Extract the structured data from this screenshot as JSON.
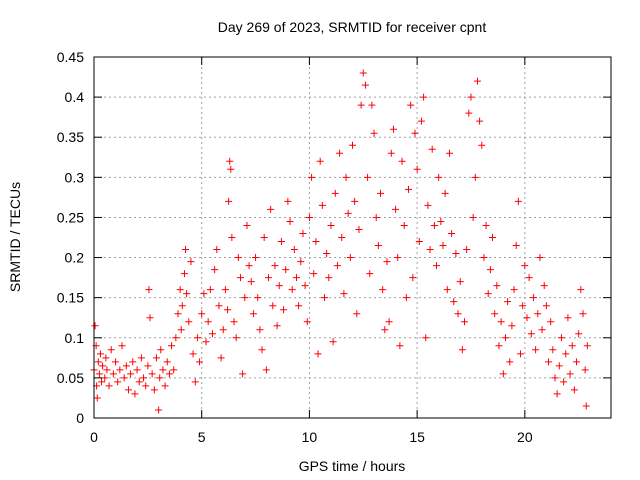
{
  "chart_data": {
    "type": "scatter",
    "title": "Day 269 of 2023, SRMTID for receiver cpnt",
    "xlabel": "GPS time / hours",
    "ylabel": "SRMTID / TECUs",
    "xlim": [
      0,
      24
    ],
    "ylim": [
      0,
      0.45
    ],
    "x_ticks": [
      0,
      5,
      10,
      15,
      20
    ],
    "x_tick_labels": [
      "0",
      "5",
      "10",
      "15",
      "20"
    ],
    "y_ticks": [
      0,
      0.05,
      0.1,
      0.15,
      0.2,
      0.25,
      0.3,
      0.35,
      0.4,
      0.45
    ],
    "y_tick_labels": [
      "0",
      "0.05",
      "0.1",
      "0.15",
      "0.2",
      "0.25",
      "0.3",
      "0.35",
      "0.4",
      "0.45"
    ],
    "grid": true,
    "marker": "plus",
    "marker_color": "#ff0000",
    "series": [
      {
        "name": "SRMTID",
        "points": [
          [
            0.0,
            0.06
          ],
          [
            0.05,
            0.115
          ],
          [
            0.1,
            0.09
          ],
          [
            0.12,
            0.04
          ],
          [
            0.15,
            0.025
          ],
          [
            0.2,
            0.07
          ],
          [
            0.25,
            0.055
          ],
          [
            0.3,
            0.08
          ],
          [
            0.35,
            0.045
          ],
          [
            0.4,
            0.065
          ],
          [
            0.5,
            0.05
          ],
          [
            0.55,
            0.075
          ],
          [
            0.6,
            0.06
          ],
          [
            0.7,
            0.04
          ],
          [
            0.8,
            0.085
          ],
          [
            0.9,
            0.055
          ],
          [
            1.0,
            0.07
          ],
          [
            1.1,
            0.045
          ],
          [
            1.2,
            0.06
          ],
          [
            1.3,
            0.09
          ],
          [
            1.4,
            0.05
          ],
          [
            1.5,
            0.065
          ],
          [
            1.6,
            0.035
          ],
          [
            1.7,
            0.055
          ],
          [
            1.8,
            0.07
          ],
          [
            1.9,
            0.03
          ],
          [
            2.0,
            0.06
          ],
          [
            2.1,
            0.045
          ],
          [
            2.2,
            0.075
          ],
          [
            2.3,
            0.05
          ],
          [
            2.4,
            0.04
          ],
          [
            2.5,
            0.065
          ],
          [
            2.55,
            0.16
          ],
          [
            2.6,
            0.125
          ],
          [
            2.7,
            0.055
          ],
          [
            2.8,
            0.035
          ],
          [
            2.9,
            0.075
          ],
          [
            3.0,
            0.01
          ],
          [
            3.05,
            0.05
          ],
          [
            3.1,
            0.085
          ],
          [
            3.2,
            0.06
          ],
          [
            3.3,
            0.04
          ],
          [
            3.4,
            0.07
          ],
          [
            3.5,
            0.055
          ],
          [
            3.6,
            0.09
          ],
          [
            3.7,
            0.06
          ],
          [
            3.8,
            0.1
          ],
          [
            3.9,
            0.13
          ],
          [
            4.0,
            0.16
          ],
          [
            4.05,
            0.11
          ],
          [
            4.1,
            0.14
          ],
          [
            4.2,
            0.18
          ],
          [
            4.25,
            0.21
          ],
          [
            4.3,
            0.155
          ],
          [
            4.4,
            0.12
          ],
          [
            4.5,
            0.195
          ],
          [
            4.6,
            0.08
          ],
          [
            4.7,
            0.045
          ],
          [
            4.8,
            0.1
          ],
          [
            4.9,
            0.07
          ],
          [
            5.0,
            0.13
          ],
          [
            5.1,
            0.155
          ],
          [
            5.2,
            0.095
          ],
          [
            5.3,
            0.12
          ],
          [
            5.4,
            0.16
          ],
          [
            5.5,
            0.105
          ],
          [
            5.6,
            0.185
          ],
          [
            5.7,
            0.21
          ],
          [
            5.8,
            0.14
          ],
          [
            5.9,
            0.075
          ],
          [
            6.0,
            0.11
          ],
          [
            6.1,
            0.16
          ],
          [
            6.2,
            0.135
          ],
          [
            6.25,
            0.27
          ],
          [
            6.3,
            0.32
          ],
          [
            6.35,
            0.31
          ],
          [
            6.4,
            0.225
          ],
          [
            6.5,
            0.12
          ],
          [
            6.6,
            0.1
          ],
          [
            6.7,
            0.2
          ],
          [
            6.8,
            0.175
          ],
          [
            6.9,
            0.055
          ],
          [
            7.0,
            0.15
          ],
          [
            7.1,
            0.24
          ],
          [
            7.2,
            0.19
          ],
          [
            7.3,
            0.17
          ],
          [
            7.4,
            0.13
          ],
          [
            7.5,
            0.2
          ],
          [
            7.6,
            0.15
          ],
          [
            7.7,
            0.11
          ],
          [
            7.8,
            0.085
          ],
          [
            7.9,
            0.225
          ],
          [
            8.0,
            0.06
          ],
          [
            8.1,
            0.175
          ],
          [
            8.2,
            0.26
          ],
          [
            8.3,
            0.14
          ],
          [
            8.4,
            0.19
          ],
          [
            8.5,
            0.115
          ],
          [
            8.6,
            0.165
          ],
          [
            8.7,
            0.22
          ],
          [
            8.8,
            0.135
          ],
          [
            8.9,
            0.185
          ],
          [
            9.0,
            0.27
          ],
          [
            9.1,
            0.245
          ],
          [
            9.2,
            0.16
          ],
          [
            9.3,
            0.21
          ],
          [
            9.4,
            0.175
          ],
          [
            9.5,
            0.14
          ],
          [
            9.6,
            0.195
          ],
          [
            9.7,
            0.23
          ],
          [
            9.8,
            0.165
          ],
          [
            9.9,
            0.12
          ],
          [
            10.0,
            0.25
          ],
          [
            10.1,
            0.3
          ],
          [
            10.2,
            0.18
          ],
          [
            10.3,
            0.22
          ],
          [
            10.4,
            0.08
          ],
          [
            10.5,
            0.32
          ],
          [
            10.6,
            0.265
          ],
          [
            10.7,
            0.15
          ],
          [
            10.8,
            0.205
          ],
          [
            10.9,
            0.175
          ],
          [
            11.0,
            0.24
          ],
          [
            11.1,
            0.095
          ],
          [
            11.2,
            0.28
          ],
          [
            11.3,
            0.19
          ],
          [
            11.4,
            0.33
          ],
          [
            11.5,
            0.225
          ],
          [
            11.6,
            0.155
          ],
          [
            11.7,
            0.3
          ],
          [
            11.8,
            0.255
          ],
          [
            11.9,
            0.2
          ],
          [
            12.0,
            0.34
          ],
          [
            12.1,
            0.27
          ],
          [
            12.2,
            0.13
          ],
          [
            12.3,
            0.235
          ],
          [
            12.4,
            0.39
          ],
          [
            12.5,
            0.43
          ],
          [
            12.6,
            0.415
          ],
          [
            12.7,
            0.3
          ],
          [
            12.8,
            0.18
          ],
          [
            12.9,
            0.39
          ],
          [
            13.0,
            0.355
          ],
          [
            13.1,
            0.25
          ],
          [
            13.2,
            0.215
          ],
          [
            13.3,
            0.28
          ],
          [
            13.4,
            0.16
          ],
          [
            13.5,
            0.11
          ],
          [
            13.6,
            0.195
          ],
          [
            13.7,
            0.12
          ],
          [
            13.8,
            0.33
          ],
          [
            13.9,
            0.36
          ],
          [
            14.0,
            0.26
          ],
          [
            14.1,
            0.2
          ],
          [
            14.2,
            0.09
          ],
          [
            14.3,
            0.32
          ],
          [
            14.4,
            0.24
          ],
          [
            14.5,
            0.15
          ],
          [
            14.6,
            0.285
          ],
          [
            14.7,
            0.39
          ],
          [
            14.8,
            0.175
          ],
          [
            14.9,
            0.355
          ],
          [
            15.0,
            0.31
          ],
          [
            15.1,
            0.22
          ],
          [
            15.2,
            0.37
          ],
          [
            15.3,
            0.4
          ],
          [
            15.4,
            0.1
          ],
          [
            15.5,
            0.265
          ],
          [
            15.6,
            0.21
          ],
          [
            15.7,
            0.335
          ],
          [
            15.8,
            0.24
          ],
          [
            15.9,
            0.19
          ],
          [
            16.0,
            0.3
          ],
          [
            16.1,
            0.245
          ],
          [
            16.2,
            0.215
          ],
          [
            16.3,
            0.28
          ],
          [
            16.4,
            0.16
          ],
          [
            16.5,
            0.33
          ],
          [
            16.6,
            0.23
          ],
          [
            16.7,
            0.145
          ],
          [
            16.8,
            0.205
          ],
          [
            16.9,
            0.13
          ],
          [
            17.0,
            0.17
          ],
          [
            17.1,
            0.085
          ],
          [
            17.2,
            0.12
          ],
          [
            17.3,
            0.21
          ],
          [
            17.4,
            0.38
          ],
          [
            17.5,
            0.4
          ],
          [
            17.6,
            0.25
          ],
          [
            17.7,
            0.3
          ],
          [
            17.8,
            0.42
          ],
          [
            17.9,
            0.37
          ],
          [
            18.0,
            0.34
          ],
          [
            18.1,
            0.2
          ],
          [
            18.2,
            0.24
          ],
          [
            18.3,
            0.155
          ],
          [
            18.4,
            0.185
          ],
          [
            18.5,
            0.225
          ],
          [
            18.6,
            0.13
          ],
          [
            18.7,
            0.165
          ],
          [
            18.8,
            0.09
          ],
          [
            18.9,
            0.12
          ],
          [
            19.0,
            0.055
          ],
          [
            19.1,
            0.1
          ],
          [
            19.2,
            0.145
          ],
          [
            19.3,
            0.07
          ],
          [
            19.4,
            0.115
          ],
          [
            19.5,
            0.16
          ],
          [
            19.6,
            0.215
          ],
          [
            19.7,
            0.27
          ],
          [
            19.8,
            0.08
          ],
          [
            19.9,
            0.14
          ],
          [
            20.0,
            0.19
          ],
          [
            20.1,
            0.125
          ],
          [
            20.2,
            0.175
          ],
          [
            20.3,
            0.105
          ],
          [
            20.4,
            0.15
          ],
          [
            20.5,
            0.085
          ],
          [
            20.6,
            0.13
          ],
          [
            20.7,
            0.2
          ],
          [
            20.8,
            0.11
          ],
          [
            20.9,
            0.165
          ],
          [
            21.0,
            0.14
          ],
          [
            21.1,
            0.07
          ],
          [
            21.2,
            0.12
          ],
          [
            21.3,
            0.085
          ],
          [
            21.4,
            0.05
          ],
          [
            21.5,
            0.03
          ],
          [
            21.6,
            0.065
          ],
          [
            21.7,
            0.1
          ],
          [
            21.8,
            0.045
          ],
          [
            21.9,
            0.08
          ],
          [
            22.0,
            0.125
          ],
          [
            22.1,
            0.055
          ],
          [
            22.2,
            0.09
          ],
          [
            22.3,
            0.035
          ],
          [
            22.4,
            0.07
          ],
          [
            22.5,
            0.105
          ],
          [
            22.6,
            0.16
          ],
          [
            22.7,
            0.13
          ],
          [
            22.8,
            0.06
          ],
          [
            22.85,
            0.015
          ],
          [
            22.9,
            0.09
          ]
        ]
      }
    ]
  }
}
